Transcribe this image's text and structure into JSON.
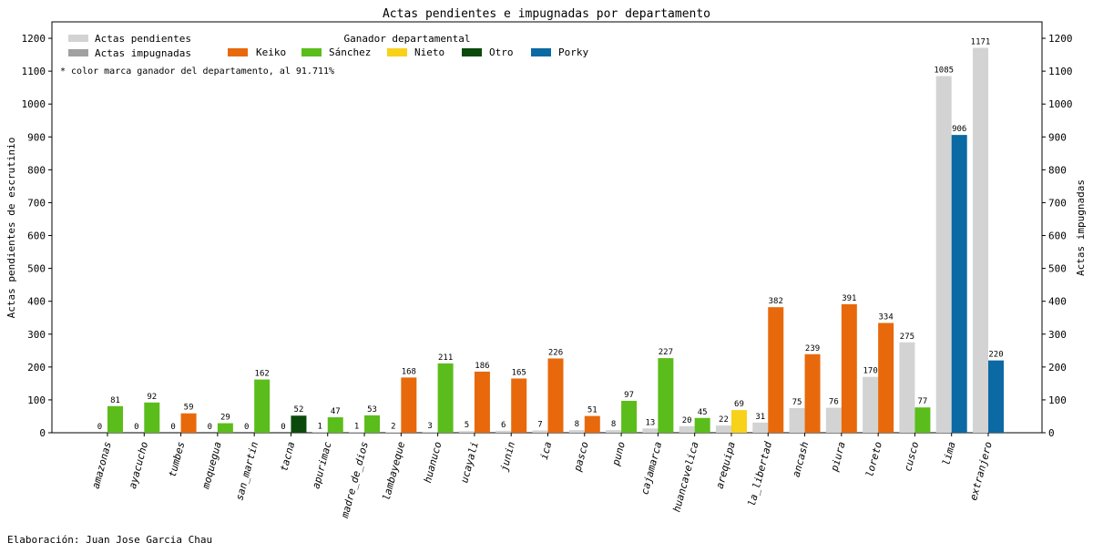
{
  "chart_data": {
    "type": "bar",
    "title": "Actas pendientes e impugnadas por departamento",
    "ylabel_left": "Actas pendientes de escrutinio",
    "ylabel_right": "Actas impugnadas",
    "ylim": [
      0,
      1250
    ],
    "yticks": [
      0,
      100,
      200,
      300,
      400,
      500,
      600,
      700,
      800,
      900,
      1000,
      1100,
      1200
    ],
    "categories": [
      "amazonas",
      "ayacucho",
      "tumbes",
      "moquegua",
      "san_martin",
      "tacna",
      "apurimac",
      "madre_de_dios",
      "lambayeque",
      "huanuco",
      "ucayali",
      "junin",
      "ica",
      "pasco",
      "puno",
      "cajamarca",
      "huancavelica",
      "arequipa",
      "la_libertad",
      "ancash",
      "piura",
      "loreto",
      "cusco",
      "lima",
      "extranjero"
    ],
    "series": [
      {
        "name": "Actas pendientes",
        "color": "#d3d3d3",
        "values": [
          0,
          0,
          0,
          0,
          0,
          0,
          1,
          1,
          2,
          3,
          5,
          6,
          7,
          8,
          8,
          13,
          20,
          22,
          31,
          75,
          76,
          170,
          275,
          1085,
          1171
        ]
      },
      {
        "name": "Actas impugnadas",
        "values": [
          81,
          92,
          59,
          29,
          162,
          52,
          47,
          53,
          168,
          211,
          186,
          165,
          226,
          51,
          97,
          227,
          45,
          69,
          382,
          239,
          391,
          334,
          77,
          906,
          220
        ],
        "winners": [
          "Sánchez",
          "Sánchez",
          "Keiko",
          "Sánchez",
          "Sánchez",
          "Otro",
          "Sánchez",
          "Sánchez",
          "Keiko",
          "Sánchez",
          "Keiko",
          "Keiko",
          "Keiko",
          "Keiko",
          "Sánchez",
          "Sánchez",
          "Sánchez",
          "Nieto",
          "Keiko",
          "Keiko",
          "Keiko",
          "Keiko",
          "Sánchez",
          "Porky",
          "Porky"
        ]
      }
    ],
    "legend": {
      "series_items": [
        {
          "label": "Actas pendientes",
          "color": "#d3d3d3"
        },
        {
          "label": "Actas impugnadas",
          "color": "#a0a0a0"
        }
      ],
      "winner_title": "Ganador departamental",
      "winner_items": [
        {
          "label": "Keiko",
          "color": "#e8690b"
        },
        {
          "label": "Sánchez",
          "color": "#5bbd1b"
        },
        {
          "label": "Nieto",
          "color": "#f8d11a"
        },
        {
          "label": "Otro",
          "color": "#0b4a0b"
        },
        {
          "label": "Porky",
          "color": "#0b69a3"
        }
      ],
      "note": "* color marca ganador del departamento, al 91.711%"
    }
  },
  "footer": {
    "credit": "Elaboración: Juan Jose Garcia Chau"
  }
}
